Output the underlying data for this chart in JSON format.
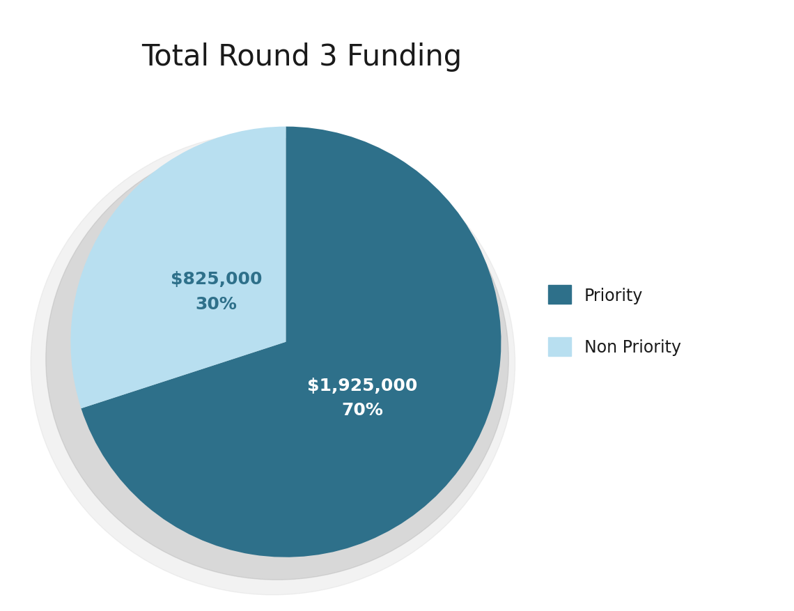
{
  "title": "Total Round 3 Funding",
  "title_fontsize": 30,
  "slices": [
    {
      "label": "Priority",
      "value": 70,
      "amount": "$1,925,000",
      "color": "#2e708a"
    },
    {
      "label": "Non Priority",
      "value": 30,
      "amount": "$825,000",
      "color": "#b8dff0"
    }
  ],
  "label_fontsize": 18,
  "legend_fontsize": 17,
  "background_color": "#ffffff",
  "startangle": 90,
  "priority_label_color": "#ffffff",
  "non_priority_label_color": "#2e708a",
  "title_color": "#1a1a1a",
  "legend_text_color": "#1a1a1a"
}
